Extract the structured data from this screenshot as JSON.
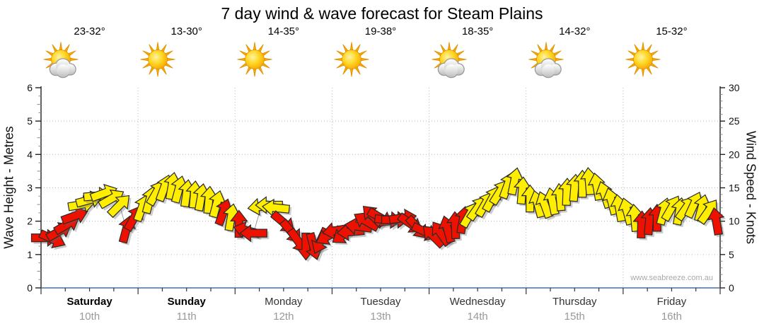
{
  "title": "7 day wind & wave forecast for Steam Plains",
  "watermark": "www.seabreeze.com.au",
  "axes": {
    "left_label": "Wave Height - Metres",
    "right_label": "Wind Speed - Knots",
    "left_ticks": [
      0,
      1,
      2,
      3,
      4,
      5,
      6
    ],
    "right_ticks": [
      0,
      5,
      10,
      15,
      20,
      25,
      30
    ]
  },
  "days": [
    {
      "name": "Saturday",
      "date": "10th",
      "temp": "23-32°",
      "weather": "partly-cloudy",
      "bold": true
    },
    {
      "name": "Sunday",
      "date": "11th",
      "temp": "13-30°",
      "weather": "sunny",
      "bold": true
    },
    {
      "name": "Monday",
      "date": "12th",
      "temp": "14-35°",
      "weather": "sunny",
      "bold": false
    },
    {
      "name": "Tuesday",
      "date": "13th",
      "temp": "19-38°",
      "weather": "sunny",
      "bold": false
    },
    {
      "name": "Wednesday",
      "date": "14th",
      "temp": "18-35°",
      "weather": "partly-cloudy",
      "bold": false
    },
    {
      "name": "Thursday",
      "date": "15th",
      "temp": "14-32°",
      "weather": "partly-cloudy",
      "bold": false
    },
    {
      "name": "Friday",
      "date": "16th",
      "temp": "15-32°",
      "weather": "sunny",
      "bold": false
    }
  ],
  "colors": {
    "arrow_yellow": "#FFEE00",
    "arrow_red": "#EE1100",
    "arrow_outline": "#2a2a2a",
    "axis_bottom_blue": "#456F9B",
    "axis_dark": "#222222",
    "grid_gray": "#bbbbbb",
    "date_gray": "#999999",
    "sun_orange": "#F6A800"
  },
  "chart_data": {
    "type": "wind-arrows",
    "title": "7 day wind & wave forecast for Steam Plains",
    "x_unit": "days (7 days, Sat 10th - Fri 16th)",
    "x_range": [
      0,
      7
    ],
    "wave_axis": {
      "label": "Wave Height - Metres",
      "range": [
        0,
        6
      ],
      "major_tick": 1
    },
    "wind_axis": {
      "label": "Wind Speed - Knots",
      "range": [
        0,
        30
      ],
      "major_tick": 5
    },
    "grid": "dotted horizontal at 1-5 m, dotted vertical at day boundaries",
    "arrow_note": "each arrow = [day_position, wind_knots, heading_deg_css(0=E,-90=N), color y=yellow r=red]",
    "arrows": [
      [
        0.04,
        7.5,
        0,
        "r"
      ],
      [
        0.12,
        7.3,
        25,
        "r"
      ],
      [
        0.19,
        8.5,
        -30,
        "r"
      ],
      [
        0.27,
        9.5,
        -30,
        "r"
      ],
      [
        0.35,
        10.8,
        -20,
        "r"
      ],
      [
        0.42,
        12.5,
        -10,
        "y"
      ],
      [
        0.5,
        13.2,
        -15,
        "y"
      ],
      [
        0.58,
        13.8,
        -5,
        "y"
      ],
      [
        0.65,
        14.2,
        -20,
        "y"
      ],
      [
        0.73,
        13.4,
        -30,
        "y"
      ],
      [
        0.81,
        12.4,
        -45,
        "y"
      ],
      [
        0.88,
        8.8,
        -75,
        "r"
      ],
      [
        0.96,
        10.5,
        -60,
        "r"
      ],
      [
        1.04,
        12.0,
        -70,
        "y"
      ],
      [
        1.12,
        13.2,
        -75,
        "y"
      ],
      [
        1.19,
        14.3,
        -60,
        "y"
      ],
      [
        1.27,
        15.0,
        -70,
        "y"
      ],
      [
        1.35,
        15.3,
        -80,
        "y"
      ],
      [
        1.42,
        14.8,
        -75,
        "y"
      ],
      [
        1.5,
        14.2,
        -82,
        "y"
      ],
      [
        1.58,
        14.0,
        -85,
        "y"
      ],
      [
        1.65,
        13.6,
        -80,
        "y"
      ],
      [
        1.73,
        13.2,
        -85,
        "y"
      ],
      [
        1.81,
        12.6,
        -75,
        "y"
      ],
      [
        1.88,
        11.4,
        -70,
        "r"
      ],
      [
        1.96,
        10.6,
        -80,
        "y"
      ],
      [
        2.04,
        9.6,
        -90,
        "r"
      ],
      [
        2.12,
        8.6,
        -165,
        "r"
      ],
      [
        2.19,
        8.2,
        180,
        "r"
      ],
      [
        2.27,
        12.2,
        172,
        "y"
      ],
      [
        2.35,
        12.4,
        180,
        "y"
      ],
      [
        2.42,
        12.0,
        186,
        "y"
      ],
      [
        2.5,
        9.8,
        40,
        "r"
      ],
      [
        2.58,
        8.4,
        50,
        "r"
      ],
      [
        2.65,
        7.0,
        55,
        "r"
      ],
      [
        2.73,
        6.2,
        90,
        "r"
      ],
      [
        2.81,
        6.2,
        75,
        "r"
      ],
      [
        2.88,
        7.0,
        115,
        "r"
      ],
      [
        2.96,
        7.8,
        150,
        "r"
      ],
      [
        3.04,
        8.6,
        170,
        "r"
      ],
      [
        3.12,
        8.0,
        145,
        "r"
      ],
      [
        3.19,
        8.4,
        175,
        "r"
      ],
      [
        3.27,
        9.2,
        -172,
        "r"
      ],
      [
        3.35,
        10.0,
        -150,
        "r"
      ],
      [
        3.42,
        10.8,
        -135,
        "r"
      ],
      [
        3.5,
        10.5,
        30,
        "r"
      ],
      [
        3.58,
        10.2,
        5,
        "r"
      ],
      [
        3.65,
        10.2,
        0,
        "r"
      ],
      [
        3.73,
        10.5,
        -8,
        "r"
      ],
      [
        3.81,
        9.6,
        35,
        "r"
      ],
      [
        3.88,
        9.0,
        48,
        "r"
      ],
      [
        3.96,
        8.4,
        25,
        "r"
      ],
      [
        4.04,
        7.8,
        -135,
        "r"
      ],
      [
        4.12,
        8.2,
        -125,
        "r"
      ],
      [
        4.19,
        8.8,
        -105,
        "r"
      ],
      [
        4.27,
        9.4,
        -92,
        "r"
      ],
      [
        4.35,
        10.2,
        -80,
        "r"
      ],
      [
        4.42,
        11.0,
        -60,
        "y"
      ],
      [
        4.5,
        12.0,
        -55,
        "y"
      ],
      [
        4.58,
        12.6,
        -60,
        "y"
      ],
      [
        4.65,
        13.4,
        -62,
        "y"
      ],
      [
        4.73,
        14.4,
        -58,
        "y"
      ],
      [
        4.81,
        15.4,
        -70,
        "y"
      ],
      [
        4.88,
        16.0,
        -78,
        "y"
      ],
      [
        4.96,
        14.6,
        -85,
        "y"
      ],
      [
        5.04,
        13.4,
        -90,
        "y"
      ],
      [
        5.12,
        12.6,
        -105,
        "y"
      ],
      [
        5.19,
        12.5,
        -110,
        "y"
      ],
      [
        5.27,
        13.0,
        -102,
        "y"
      ],
      [
        5.35,
        13.6,
        -95,
        "y"
      ],
      [
        5.42,
        14.4,
        -88,
        "y"
      ],
      [
        5.5,
        15.0,
        -85,
        "y"
      ],
      [
        5.58,
        15.6,
        -90,
        "y"
      ],
      [
        5.65,
        16.0,
        -95,
        "y"
      ],
      [
        5.73,
        15.2,
        -100,
        "y"
      ],
      [
        5.81,
        14.0,
        -108,
        "y"
      ],
      [
        5.88,
        13.0,
        -105,
        "y"
      ],
      [
        5.96,
        12.0,
        -100,
        "y"
      ],
      [
        6.04,
        11.5,
        -105,
        "y"
      ],
      [
        6.12,
        10.5,
        -95,
        "y"
      ],
      [
        6.19,
        9.5,
        -88,
        "r"
      ],
      [
        6.27,
        10.0,
        -85,
        "r"
      ],
      [
        6.35,
        10.5,
        -90,
        "r"
      ],
      [
        6.42,
        11.5,
        -75,
        "y"
      ],
      [
        6.5,
        12.0,
        -60,
        "y"
      ],
      [
        6.58,
        11.5,
        -80,
        "y"
      ],
      [
        6.65,
        12.0,
        -55,
        "y"
      ],
      [
        6.73,
        12.5,
        -65,
        "y"
      ],
      [
        6.81,
        12.0,
        -75,
        "y"
      ],
      [
        6.88,
        11.5,
        -55,
        "y"
      ],
      [
        6.96,
        10.0,
        -100,
        "r"
      ]
    ]
  }
}
